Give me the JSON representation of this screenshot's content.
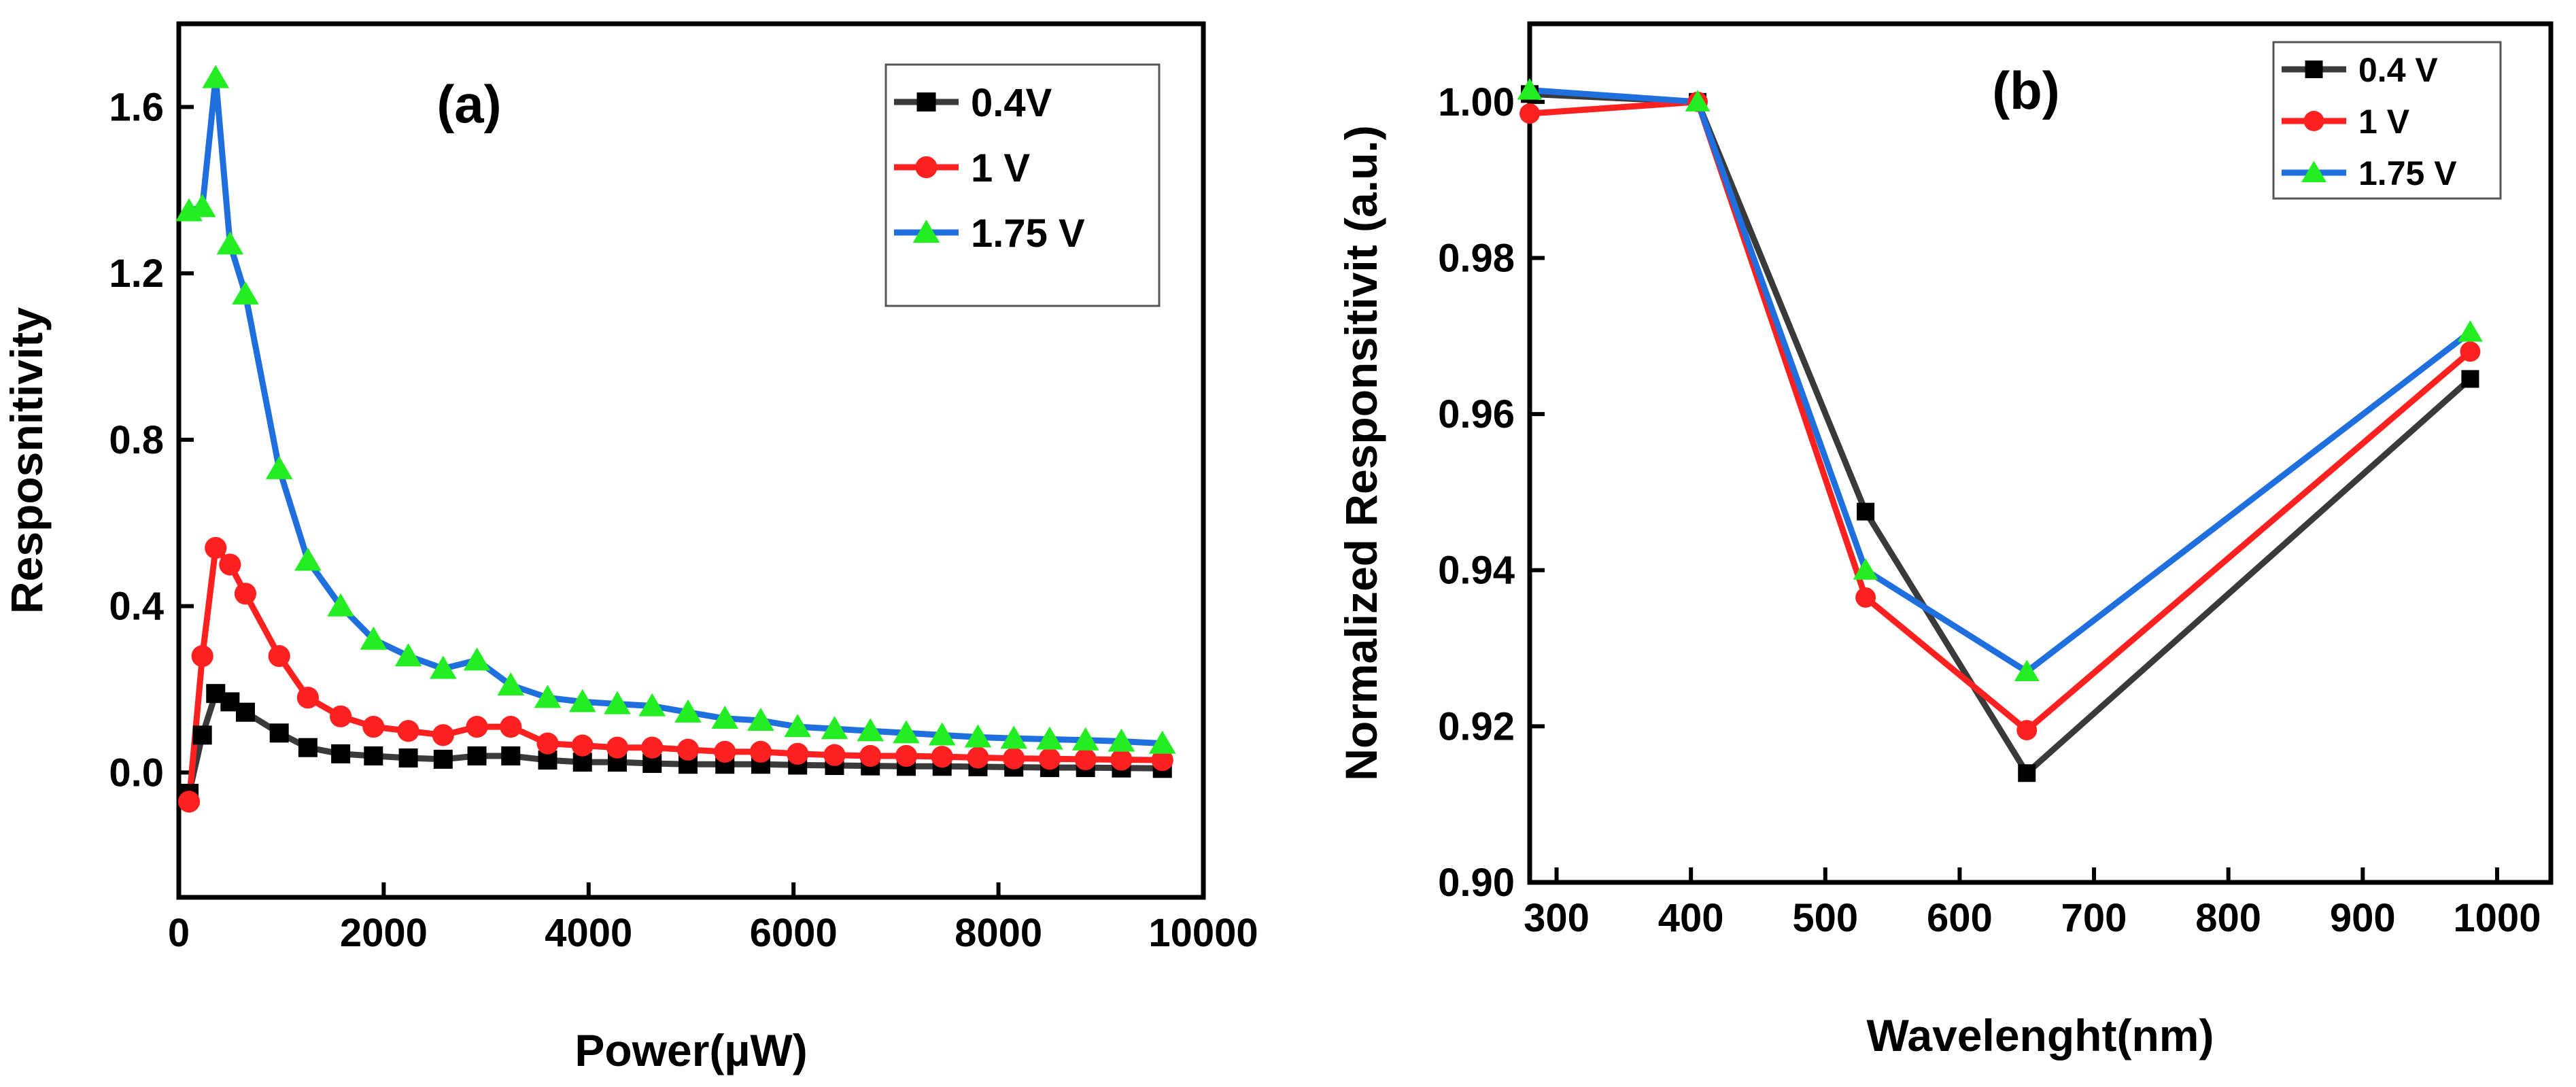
{
  "chart_data": [
    {
      "type": "line",
      "panel_label": "(a)",
      "xlabel": "Power(µW)",
      "ylabel": "Resposnitivity",
      "xlim": [
        0,
        10000
      ],
      "ylim": [
        -0.3,
        1.8
      ],
      "xticks": [
        0,
        2000,
        4000,
        6000,
        8000,
        10000
      ],
      "xtick_labels": [
        "0",
        "2000",
        "4000",
        "6000",
        "8000",
        "10000"
      ],
      "yticks": [
        0.0,
        0.4,
        0.8,
        1.2,
        1.6
      ],
      "ytick_labels": [
        "0.0",
        "0.4",
        "0.8",
        "1.2",
        "1.6"
      ],
      "legend_position": "top-right",
      "x": [
        100,
        230,
        360,
        500,
        650,
        980,
        1260,
        1580,
        1900,
        2240,
        2580,
        2910,
        3240,
        3600,
        3940,
        4280,
        4620,
        4970,
        5330,
        5680,
        6040,
        6400,
        6750,
        7100,
        7450,
        7800,
        8150,
        8500,
        8850,
        9200,
        9600
      ],
      "series": [
        {
          "name": "0.4V",
          "color": "#3a3a3a",
          "marker": "square",
          "marker_color": "#000000",
          "values": [
            -0.05,
            0.09,
            0.19,
            0.17,
            0.145,
            0.095,
            0.06,
            0.045,
            0.04,
            0.035,
            0.032,
            0.04,
            0.04,
            0.03,
            0.025,
            0.025,
            0.022,
            0.02,
            0.02,
            0.02,
            0.018,
            0.017,
            0.016,
            0.015,
            0.015,
            0.014,
            0.013,
            0.012,
            0.012,
            0.011,
            0.01
          ]
        },
        {
          "name": "1 V",
          "color": "#ff2020",
          "marker": "circle",
          "marker_color": "#ff2020",
          "values": [
            -0.07,
            0.28,
            0.54,
            0.5,
            0.43,
            0.28,
            0.18,
            0.135,
            0.11,
            0.1,
            0.09,
            0.11,
            0.11,
            0.07,
            0.065,
            0.06,
            0.06,
            0.055,
            0.05,
            0.05,
            0.045,
            0.042,
            0.04,
            0.04,
            0.038,
            0.036,
            0.034,
            0.033,
            0.032,
            0.031,
            0.03
          ]
        },
        {
          "name": "1.75 V",
          "color": "#1f6fdf",
          "marker": "triangle",
          "marker_color": "#22ee22",
          "values": [
            1.35,
            1.36,
            1.67,
            1.27,
            1.15,
            0.73,
            0.51,
            0.4,
            0.32,
            0.28,
            0.25,
            0.27,
            0.21,
            0.18,
            0.17,
            0.165,
            0.16,
            0.145,
            0.13,
            0.125,
            0.11,
            0.105,
            0.1,
            0.095,
            0.09,
            0.085,
            0.082,
            0.08,
            0.078,
            0.075,
            0.07
          ]
        }
      ]
    },
    {
      "type": "line",
      "panel_label": "(b)",
      "xlabel": "Wavelenght(nm)",
      "ylabel": "Normalized Responsitivit (a.u.)",
      "xlim": [
        280,
        1040
      ],
      "ylim": [
        0.9,
        1.01
      ],
      "xticks": [
        300,
        400,
        500,
        600,
        700,
        800,
        900,
        1000
      ],
      "xtick_labels": [
        "300",
        "400",
        "500",
        "600",
        "700",
        "800",
        "900",
        "1000"
      ],
      "yticks": [
        0.9,
        0.92,
        0.94,
        0.96,
        0.98,
        1.0
      ],
      "ytick_labels": [
        "0.90",
        "0.92",
        "0.94",
        "0.96",
        "0.98",
        "1.00"
      ],
      "legend_position": "top-right",
      "x": [
        280,
        405,
        530,
        650,
        980
      ],
      "series": [
        {
          "name": "0.4 V",
          "color": "#3a3a3a",
          "marker": "square",
          "marker_color": "#000000",
          "values": [
            1.001,
            1.0,
            0.9475,
            0.914,
            0.9645
          ]
        },
        {
          "name": "1 V",
          "color": "#ff2020",
          "marker": "circle",
          "marker_color": "#ff2020",
          "values": [
            0.9985,
            1.0,
            0.9365,
            0.9195,
            0.968
          ]
        },
        {
          "name": "1.75 V",
          "color": "#1f6fdf",
          "marker": "triangle",
          "marker_color": "#22ee22",
          "values": [
            1.0015,
            1.0,
            0.94,
            0.927,
            0.9705
          ]
        }
      ]
    }
  ]
}
